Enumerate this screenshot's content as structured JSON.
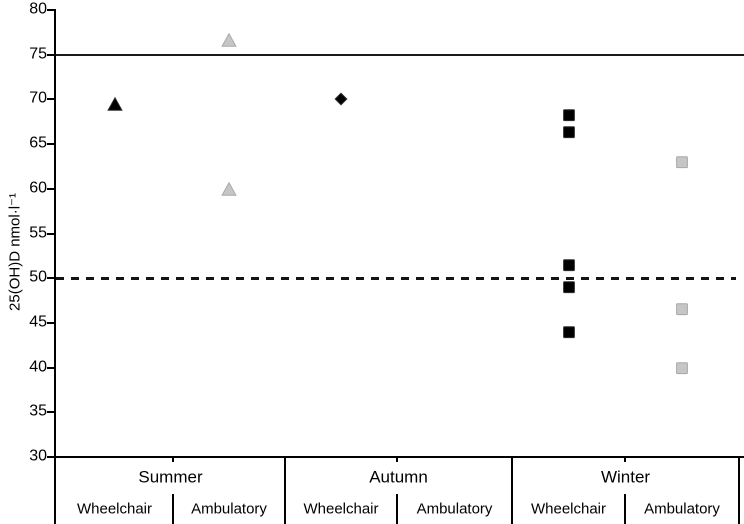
{
  "chart_data": {
    "type": "scatter",
    "title": "",
    "xlabel": "",
    "ylabel": "25(OH)D nmol·l⁻¹",
    "ylim": [
      30,
      80
    ],
    "ytick_step": 5,
    "yticks": [
      80,
      75,
      70,
      65,
      60,
      55,
      50,
      45,
      40,
      35,
      30
    ],
    "grid": false,
    "legend": false,
    "reference_lines": [
      {
        "value": 75,
        "style": "solid"
      },
      {
        "value": 50,
        "style": "dashed"
      }
    ],
    "groups": [
      {
        "label": "Summer",
        "subgroups": [
          {
            "label": "Wheelchair",
            "marker": "triangle",
            "color": "black",
            "values": [
              69.5
            ]
          },
          {
            "label": "Ambulatory",
            "marker": "triangle",
            "color": "gray",
            "values": [
              76.7,
              60
            ]
          }
        ]
      },
      {
        "label": "Autumn",
        "subgroups": [
          {
            "label": "Wheelchair",
            "marker": "diamond",
            "color": "black",
            "values": [
              70
            ]
          },
          {
            "label": "Ambulatory",
            "marker": "diamond",
            "color": "gray",
            "values": []
          }
        ]
      },
      {
        "label": "Winter",
        "subgroups": [
          {
            "label": "Wheelchair",
            "marker": "square",
            "color": "black",
            "values": [
              68.2,
              66.3,
              51.5,
              49,
              44
            ]
          },
          {
            "label": "Ambulatory",
            "marker": "square",
            "color": "gray",
            "values": [
              63,
              46.5,
              40
            ]
          }
        ]
      }
    ],
    "colors": {
      "black_fill": "#000000",
      "black_stroke": "#2e2e2e",
      "gray_fill": "#c6c6c6",
      "gray_stroke": "#a8a8a8",
      "axis": "#000000",
      "reference": "#1a1a1a",
      "background": "#ffffff"
    }
  }
}
